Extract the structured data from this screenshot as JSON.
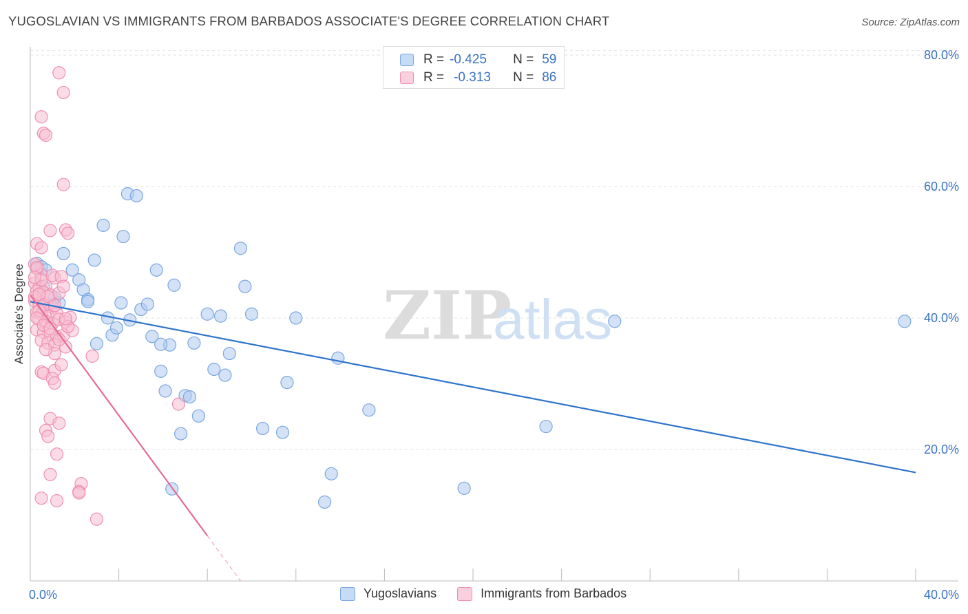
{
  "title": "YUGOSLAVIAN VS IMMIGRANTS FROM BARBADOS ASSOCIATE'S DEGREE CORRELATION CHART",
  "source": "Source: ZipAtlas.com",
  "watermark": {
    "zip": "ZIP",
    "atlas": "atlas"
  },
  "colors": {
    "blue_fill": "#aecbf0",
    "blue_stroke": "#7aa7df",
    "blue_line": "#2e74cc",
    "pink_fill": "#f7bfd1",
    "pink_stroke": "#ef8fb0",
    "pink_line": "#e56a97",
    "axis_text": "#3a72c4",
    "grid": "#e2e2e2"
  },
  "legend": {
    "rows": [
      {
        "r_label": "R =",
        "r_value": "-0.425",
        "n_label": "N =",
        "n_value": "59"
      },
      {
        "r_label": "R =",
        "r_value": "-0.313",
        "n_label": "N =",
        "n_value": "86"
      }
    ]
  },
  "bottom_legend": {
    "series1": "Yugoslavians",
    "series2": "Immigrants from Barbados"
  },
  "chart_data": {
    "type": "scatter",
    "title": "YUGOSLAVIAN VS IMMIGRANTS FROM BARBADOS ASSOCIATE'S DEGREE CORRELATION CHART",
    "xlabel": "",
    "ylabel": "Associate's Degree",
    "xlim": [
      0,
      40
    ],
    "ylim": [
      0,
      82
    ],
    "x_tick_labels": [
      "0.0%",
      "40.0%"
    ],
    "y_ticks": [
      20,
      40,
      60,
      80
    ],
    "y_tick_labels": [
      "20.0%",
      "40.0%",
      "60.0%",
      "80.0%"
    ],
    "grid": true,
    "series": [
      {
        "name": "Yugoslavians",
        "r": -0.425,
        "n": 59,
        "trend": {
          "x": [
            0,
            40
          ],
          "y": [
            42.5,
            16.5
          ],
          "dashed_from": null
        },
        "points": [
          [
            0.3,
            48.3
          ],
          [
            0.5,
            47.8
          ],
          [
            0.7,
            47.3
          ],
          [
            0.6,
            44.8
          ],
          [
            0.9,
            42.0
          ],
          [
            1.3,
            42.3
          ],
          [
            1.5,
            49.8
          ],
          [
            1.9,
            47.3
          ],
          [
            2.2,
            45.8
          ],
          [
            2.4,
            44.3
          ],
          [
            2.6,
            42.8
          ],
          [
            2.9,
            48.8
          ],
          [
            3.3,
            54.1
          ],
          [
            3.5,
            40.0
          ],
          [
            3.7,
            37.4
          ],
          [
            3.9,
            38.5
          ],
          [
            4.1,
            42.3
          ],
          [
            4.2,
            52.4
          ],
          [
            4.5,
            39.7
          ],
          [
            4.4,
            58.9
          ],
          [
            4.8,
            58.6
          ],
          [
            5.0,
            41.3
          ],
          [
            5.3,
            42.1
          ],
          [
            5.5,
            37.2
          ],
          [
            5.7,
            47.3
          ],
          [
            5.9,
            31.9
          ],
          [
            6.1,
            28.9
          ],
          [
            6.3,
            35.9
          ],
          [
            6.5,
            45.0
          ],
          [
            6.8,
            22.4
          ],
          [
            6.4,
            14.0
          ],
          [
            7.0,
            28.2
          ],
          [
            7.2,
            28.0
          ],
          [
            7.4,
            36.2
          ],
          [
            7.6,
            25.1
          ],
          [
            8.0,
            40.6
          ],
          [
            8.3,
            32.2
          ],
          [
            8.6,
            40.3
          ],
          [
            8.8,
            31.3
          ],
          [
            9.0,
            34.6
          ],
          [
            9.5,
            50.6
          ],
          [
            9.7,
            44.8
          ],
          [
            10.0,
            40.6
          ],
          [
            10.5,
            23.2
          ],
          [
            11.4,
            22.6
          ],
          [
            11.6,
            30.2
          ],
          [
            12.0,
            40.0
          ],
          [
            13.3,
            12.0
          ],
          [
            13.6,
            16.3
          ],
          [
            13.9,
            33.9
          ],
          [
            15.3,
            26.0
          ],
          [
            19.6,
            14.1
          ],
          [
            23.3,
            23.5
          ],
          [
            26.4,
            39.5
          ],
          [
            39.5,
            39.5
          ],
          [
            2.6,
            42.5
          ],
          [
            5.9,
            36.0
          ],
          [
            1.1,
            43.1
          ],
          [
            3.0,
            36.1
          ]
        ]
      },
      {
        "name": "Immigrants from Barbados",
        "r": -0.313,
        "n": 86,
        "trend": {
          "x": [
            0,
            9.5
          ],
          "y": [
            43.5,
            0
          ],
          "dashed_from": 8.0
        },
        "points": [
          [
            1.3,
            77.3
          ],
          [
            1.5,
            74.3
          ],
          [
            0.5,
            70.6
          ],
          [
            0.6,
            68.1
          ],
          [
            0.7,
            67.8
          ],
          [
            1.5,
            60.3
          ],
          [
            0.3,
            51.3
          ],
          [
            0.5,
            50.7
          ],
          [
            0.9,
            53.3
          ],
          [
            1.6,
            53.4
          ],
          [
            1.7,
            52.9
          ],
          [
            0.2,
            48.2
          ],
          [
            0.3,
            47.5
          ],
          [
            0.5,
            46.6
          ],
          [
            1.1,
            46.1
          ],
          [
            0.2,
            45.3
          ],
          [
            0.4,
            44.7
          ],
          [
            0.7,
            44.9
          ],
          [
            0.3,
            44.1
          ],
          [
            0.6,
            43.9
          ],
          [
            0.9,
            43.5
          ],
          [
            1.3,
            43.8
          ],
          [
            0.2,
            42.6
          ],
          [
            0.4,
            42.2
          ],
          [
            0.7,
            41.8
          ],
          [
            1.0,
            41.6
          ],
          [
            0.3,
            40.9
          ],
          [
            0.5,
            40.6
          ],
          [
            0.8,
            40.3
          ],
          [
            1.2,
            40.7
          ],
          [
            0.4,
            39.8
          ],
          [
            0.7,
            39.5
          ],
          [
            1.0,
            39.2
          ],
          [
            1.3,
            39.8
          ],
          [
            1.6,
            39.4
          ],
          [
            0.3,
            38.2
          ],
          [
            0.6,
            37.8
          ],
          [
            0.9,
            37.5
          ],
          [
            1.2,
            37.2
          ],
          [
            1.5,
            37.4
          ],
          [
            0.5,
            36.6
          ],
          [
            0.8,
            36.2
          ],
          [
            1.1,
            35.9
          ],
          [
            1.6,
            35.6
          ],
          [
            1.9,
            38.1
          ],
          [
            1.1,
            34.6
          ],
          [
            0.5,
            31.8
          ],
          [
            0.6,
            31.6
          ],
          [
            1.1,
            32.0
          ],
          [
            1.4,
            32.9
          ],
          [
            1.0,
            30.8
          ],
          [
            1.1,
            30.1
          ],
          [
            2.8,
            34.2
          ],
          [
            0.9,
            24.7
          ],
          [
            1.3,
            24.0
          ],
          [
            0.7,
            22.9
          ],
          [
            0.8,
            22.0
          ],
          [
            1.2,
            19.3
          ],
          [
            0.9,
            16.2
          ],
          [
            0.5,
            12.6
          ],
          [
            1.2,
            12.2
          ],
          [
            2.3,
            14.8
          ],
          [
            2.2,
            13.6
          ],
          [
            3.0,
            9.4
          ],
          [
            2.2,
            13.4
          ],
          [
            6.7,
            26.9
          ],
          [
            0.3,
            47.7
          ],
          [
            0.5,
            45.8
          ],
          [
            1.0,
            46.5
          ],
          [
            1.4,
            46.3
          ],
          [
            0.2,
            43.2
          ],
          [
            0.6,
            42.0
          ],
          [
            1.8,
            40.1
          ],
          [
            1.7,
            38.7
          ],
          [
            0.4,
            41.1
          ],
          [
            0.8,
            43.3
          ],
          [
            0.3,
            40.0
          ],
          [
            1.5,
            44.8
          ],
          [
            0.6,
            38.9
          ],
          [
            1.1,
            41.9
          ],
          [
            0.2,
            46.2
          ],
          [
            0.4,
            43.6
          ],
          [
            0.9,
            38.4
          ],
          [
            1.3,
            36.7
          ],
          [
            1.6,
            39.9
          ],
          [
            0.7,
            35.2
          ]
        ]
      }
    ]
  }
}
